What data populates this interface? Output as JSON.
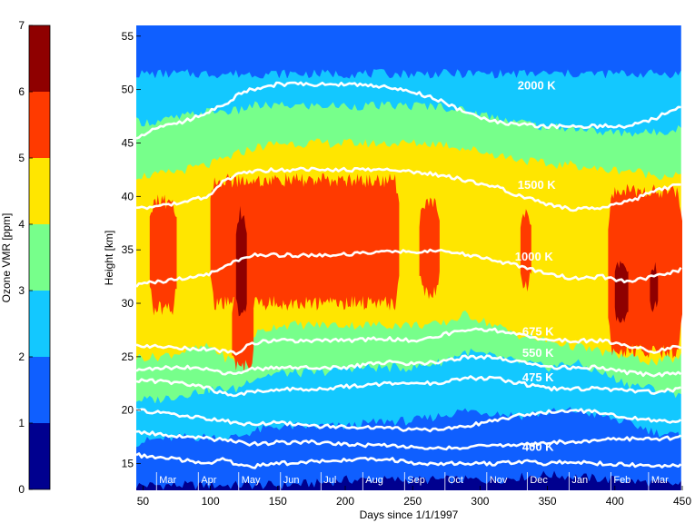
{
  "chart_data": [
    {
      "type": "colorbar",
      "label": "Ozone VMR [ppm]",
      "ticks": [
        "0",
        "1",
        "2",
        "3",
        "4",
        "5",
        "6",
        "7"
      ],
      "levels": [
        {
          "from": 0,
          "to": 1,
          "color": "#00008f"
        },
        {
          "from": 1,
          "to": 2,
          "color": "#0f5fff"
        },
        {
          "from": 2,
          "to": 3,
          "color": "#13c8ff"
        },
        {
          "from": 3,
          "to": 4,
          "color": "#77ff8b"
        },
        {
          "from": 4,
          "to": 5,
          "color": "#ffe600"
        },
        {
          "from": 5,
          "to": 6,
          "color": "#ff3a00"
        },
        {
          "from": 6,
          "to": 7,
          "color": "#8f0000"
        }
      ]
    },
    {
      "type": "heatmap",
      "xlabel": "Days since 1/1/1997",
      "ylabel": "Height [km]",
      "xlim": [
        45,
        450
      ],
      "ylim": [
        12.5,
        56
      ],
      "xticks": [
        "50",
        "100",
        "150",
        "200",
        "250",
        "300",
        "350",
        "400",
        "450"
      ],
      "yticks": [
        "15",
        "20",
        "25",
        "30",
        "35",
        "40",
        "45",
        "50",
        "55"
      ],
      "months": [
        {
          "label": "Mar",
          "day": 60
        },
        {
          "label": "Apr",
          "day": 91
        },
        {
          "label": "May",
          "day": 121
        },
        {
          "label": "Jun",
          "day": 152
        },
        {
          "label": "Jul",
          "day": 182
        },
        {
          "label": "Aug",
          "day": 213
        },
        {
          "label": "Sep",
          "day": 244
        },
        {
          "label": "Oct",
          "day": 274
        },
        {
          "label": "Nov",
          "day": 305
        },
        {
          "label": "Dec",
          "day": 335
        },
        {
          "label": "Jan",
          "day": 366
        },
        {
          "label": "Feb",
          "day": 397
        },
        {
          "label": "Mar",
          "day": 425
        }
      ],
      "days": [
        45,
        60,
        80,
        100,
        110,
        120,
        130,
        150,
        180,
        200,
        230,
        250,
        270,
        290,
        310,
        330,
        350,
        370,
        390,
        410,
        430,
        450
      ],
      "bands": [
        {
          "level": "0-1",
          "lower": [
            12.5,
            12.5,
            12.5,
            12.5,
            12.5,
            12.5,
            12.5,
            12.5,
            12.5,
            12.5,
            12.5,
            12.5,
            12.5,
            12.5,
            12.5,
            12.5,
            12.5,
            12.5,
            12.5,
            12.5,
            12.5,
            12.5
          ],
          "upper": [
            13.0,
            13.0,
            13.0,
            13.0,
            13.0,
            13.0,
            13.0,
            13.0,
            13.2,
            13.5,
            13.5,
            13.5,
            13.5,
            13.5,
            13.5,
            13.8,
            14.0,
            13.8,
            13.6,
            13.4,
            13.2,
            13.0
          ]
        },
        {
          "level": "1-2",
          "lower": [
            13.0,
            13.0,
            13.0,
            13.0,
            13.0,
            13.0,
            13.0,
            13.0,
            13.2,
            13.5,
            13.5,
            13.5,
            13.5,
            13.5,
            13.5,
            13.8,
            14.0,
            13.8,
            13.6,
            13.4,
            13.2,
            13.0
          ],
          "upper": [
            17.0,
            17.3,
            17.5,
            17.5,
            17.5,
            17.5,
            18.0,
            18.5,
            18.5,
            18.5,
            19.0,
            19.0,
            19.5,
            20.0,
            19.8,
            19.5,
            19.8,
            20.0,
            19.5,
            18.8,
            18.0,
            17.5
          ]
        },
        {
          "level": "2-3",
          "lower": [
            17.0,
            17.3,
            17.5,
            17.5,
            17.5,
            17.5,
            18.0,
            18.5,
            18.5,
            18.5,
            19.0,
            19.0,
            19.5,
            20.0,
            19.8,
            19.5,
            19.8,
            20.0,
            19.5,
            18.8,
            18.0,
            17.5
          ],
          "upper": [
            21.0,
            21.0,
            21.5,
            22.0,
            22.0,
            22.0,
            23.0,
            23.5,
            23.5,
            24.0,
            24.0,
            24.0,
            24.5,
            25.5,
            25.0,
            24.5,
            24.0,
            24.5,
            23.5,
            22.5,
            22.0,
            21.5
          ]
        },
        {
          "level": "3-4",
          "lower": [
            21.0,
            21.0,
            21.5,
            22.0,
            22.0,
            22.0,
            23.0,
            23.5,
            23.5,
            24.0,
            24.0,
            24.0,
            24.5,
            25.5,
            25.0,
            24.5,
            24.0,
            24.5,
            23.5,
            22.5,
            22.0,
            21.5
          ],
          "upper": [
            25.0,
            25.0,
            25.5,
            26.0,
            25.0,
            24.5,
            27.0,
            28.0,
            28.0,
            28.0,
            28.0,
            28.0,
            28.0,
            29.0,
            28.0,
            27.0,
            26.5,
            26.0,
            25.5,
            25.0,
            24.5,
            25.0
          ]
        },
        {
          "level": "4-5",
          "lower": [
            25.0,
            25.0,
            25.5,
            26.0,
            25.0,
            24.5,
            27.0,
            28.0,
            28.0,
            28.0,
            28.0,
            28.0,
            28.0,
            29.0,
            28.0,
            27.0,
            26.5,
            26.0,
            25.5,
            25.0,
            24.5,
            25.0
          ],
          "upper": [
            42.0,
            42.0,
            42.5,
            43.0,
            43.5,
            44.0,
            44.5,
            45.0,
            45.0,
            45.0,
            45.0,
            45.0,
            45.0,
            44.5,
            44.0,
            43.5,
            43.0,
            43.0,
            42.5,
            42.5,
            42.0,
            42.0
          ]
        },
        {
          "level": "3-4",
          "lower": [
            42.0,
            42.0,
            42.5,
            43.0,
            43.5,
            44.0,
            44.5,
            45.0,
            45.0,
            45.0,
            45.0,
            45.0,
            45.0,
            44.5,
            44.0,
            43.5,
            43.0,
            43.0,
            42.5,
            42.5,
            42.0,
            42.0
          ],
          "upper": [
            47.0,
            47.0,
            47.5,
            48.0,
            48.0,
            48.0,
            48.5,
            48.5,
            48.5,
            48.5,
            48.5,
            48.5,
            48.5,
            48.0,
            47.5,
            47.0,
            46.5,
            46.5,
            46.0,
            46.0,
            46.0,
            46.5
          ]
        },
        {
          "level": "2-3",
          "lower": [
            47.0,
            47.0,
            47.5,
            48.0,
            48.0,
            48.0,
            48.5,
            48.5,
            48.5,
            48.5,
            48.5,
            48.5,
            48.5,
            48.0,
            47.5,
            47.0,
            46.5,
            46.5,
            46.0,
            46.0,
            46.0,
            46.5
          ],
          "upper": [
            51.5,
            51.5,
            51.5,
            51.5,
            51.5,
            51.5,
            51.5,
            51.5,
            51.5,
            51.5,
            51.5,
            51.5,
            51.5,
            51.5,
            51.5,
            51.5,
            51.5,
            51.5,
            51.5,
            51.5,
            51.5,
            51.5
          ]
        },
        {
          "level": "1-2",
          "lower": [
            51.5,
            51.5,
            51.5,
            51.5,
            51.5,
            51.5,
            51.5,
            51.5,
            51.5,
            51.5,
            51.5,
            51.5,
            51.5,
            51.5,
            51.5,
            51.5,
            51.5,
            51.5,
            51.5,
            51.5,
            51.5,
            51.5
          ],
          "upper": [
            56,
            56,
            56,
            56,
            56,
            56,
            56,
            56,
            56,
            56,
            56,
            56,
            56,
            56,
            56,
            56,
            56,
            56,
            56,
            56,
            56,
            56
          ]
        }
      ],
      "high_regions": [
        {
          "level": "5-6",
          "from": 55,
          "to": 75,
          "lower": 29.5,
          "upper": 39.5
        },
        {
          "level": "5-6",
          "from": 100,
          "to": 240,
          "lower": 30.0,
          "upper": 41.5
        },
        {
          "level": "5-6",
          "from": 116,
          "to": 132,
          "lower": 24.0,
          "upper": 31.0
        },
        {
          "level": "5-6",
          "from": 255,
          "to": 270,
          "lower": 31.0,
          "upper": 39.5
        },
        {
          "level": "5-6",
          "from": 330,
          "to": 338,
          "lower": 31.5,
          "upper": 38.5
        },
        {
          "level": "5-6",
          "from": 395,
          "to": 450,
          "lower": 25.5,
          "upper": 40.5
        },
        {
          "level": "6-7",
          "from": 119,
          "to": 127,
          "lower": 28.5,
          "upper": 38.5
        },
        {
          "level": "6-7",
          "from": 400,
          "to": 410,
          "lower": 28.0,
          "upper": 34.0
        },
        {
          "level": "6-7",
          "from": 426,
          "to": 432,
          "lower": 29.5,
          "upper": 33.5
        }
      ],
      "isentropes": [
        {
          "label": "2000 K",
          "label_day": 342,
          "label_y": 50.0,
          "y": [
            45.5,
            46.5,
            47.0,
            48.0,
            48.5,
            49.5,
            50.0,
            50.5,
            50.5,
            50.5,
            50.3,
            49.8,
            49.0,
            47.8,
            47.0,
            46.7,
            46.6,
            46.5,
            46.6,
            46.6,
            47.3,
            48.5
          ]
        },
        {
          "label": "1500 K",
          "label_day": 342,
          "label_y": 40.7,
          "y": [
            39.0,
            39.0,
            39.5,
            40.0,
            41.5,
            42.0,
            42.3,
            42.5,
            42.5,
            42.5,
            42.5,
            42.3,
            42.0,
            41.5,
            41.0,
            40.0,
            39.3,
            38.8,
            39.0,
            39.5,
            40.5,
            41.2
          ]
        },
        {
          "label": "1000 K",
          "label_day": 340,
          "label_y": 34.0,
          "y": [
            31.7,
            32.0,
            32.3,
            32.8,
            33.5,
            34.0,
            34.5,
            34.5,
            34.5,
            34.6,
            34.8,
            34.8,
            35.0,
            34.5,
            34.0,
            33.5,
            32.8,
            32.3,
            32.5,
            32.0,
            32.5,
            33.2
          ]
        },
        {
          "label": "675 K",
          "label_day": 343,
          "label_y": 27.0,
          "y": [
            26.0,
            26.0,
            25.8,
            25.7,
            25.5,
            25.3,
            26.3,
            26.5,
            26.5,
            26.5,
            26.7,
            26.5,
            27.0,
            27.5,
            27.5,
            27.0,
            26.5,
            26.5,
            26.5,
            26.0,
            25.5,
            26.0
          ]
        },
        {
          "label": "550 K",
          "label_day": 343,
          "label_y": 25.0,
          "y": [
            23.8,
            23.9,
            24.0,
            23.8,
            23.5,
            23.3,
            23.8,
            24.0,
            24.0,
            24.0,
            24.5,
            24.3,
            24.5,
            25.0,
            25.0,
            24.5,
            24.0,
            24.0,
            24.0,
            23.5,
            23.3,
            23.5
          ]
        },
        {
          "label": "475 K",
          "label_day": 343,
          "label_y": 22.7,
          "y": [
            22.8,
            22.7,
            22.5,
            22.0,
            21.5,
            21.5,
            21.7,
            22.0,
            22.0,
            22.2,
            22.5,
            22.5,
            22.5,
            23.0,
            23.0,
            22.5,
            22.0,
            22.0,
            22.0,
            21.8,
            21.7,
            22.0
          ]
        },
        {
          "label": "",
          "label_day": 0,
          "label_y": 0,
          "y": [
            20.0,
            19.8,
            19.5,
            19.2,
            19.0,
            18.8,
            18.7,
            18.8,
            18.5,
            18.5,
            18.3,
            18.2,
            18.2,
            18.5,
            19.0,
            19.5,
            19.8,
            20.0,
            19.8,
            19.3,
            19.0,
            19.0
          ]
        },
        {
          "label": "",
          "label_day": 0,
          "label_y": 0,
          "y": [
            18.0,
            17.8,
            17.5,
            17.3,
            17.2,
            17.0,
            16.8,
            17.0,
            17.0,
            16.8,
            16.7,
            16.5,
            16.5,
            16.5,
            16.7,
            16.7,
            17.0,
            17.0,
            17.2,
            17.3,
            17.3,
            17.5
          ]
        },
        {
          "label": "400 K",
          "label_day": 343,
          "label_y": 16.2,
          "y": [
            15.8,
            15.6,
            15.3,
            15.0,
            15.5,
            14.8,
            14.7,
            15.0,
            15.2,
            15.3,
            15.5,
            15.0,
            15.0,
            15.0,
            15.0,
            15.2,
            15.0,
            15.2,
            15.0,
            14.9,
            14.7,
            14.8
          ]
        }
      ]
    }
  ]
}
